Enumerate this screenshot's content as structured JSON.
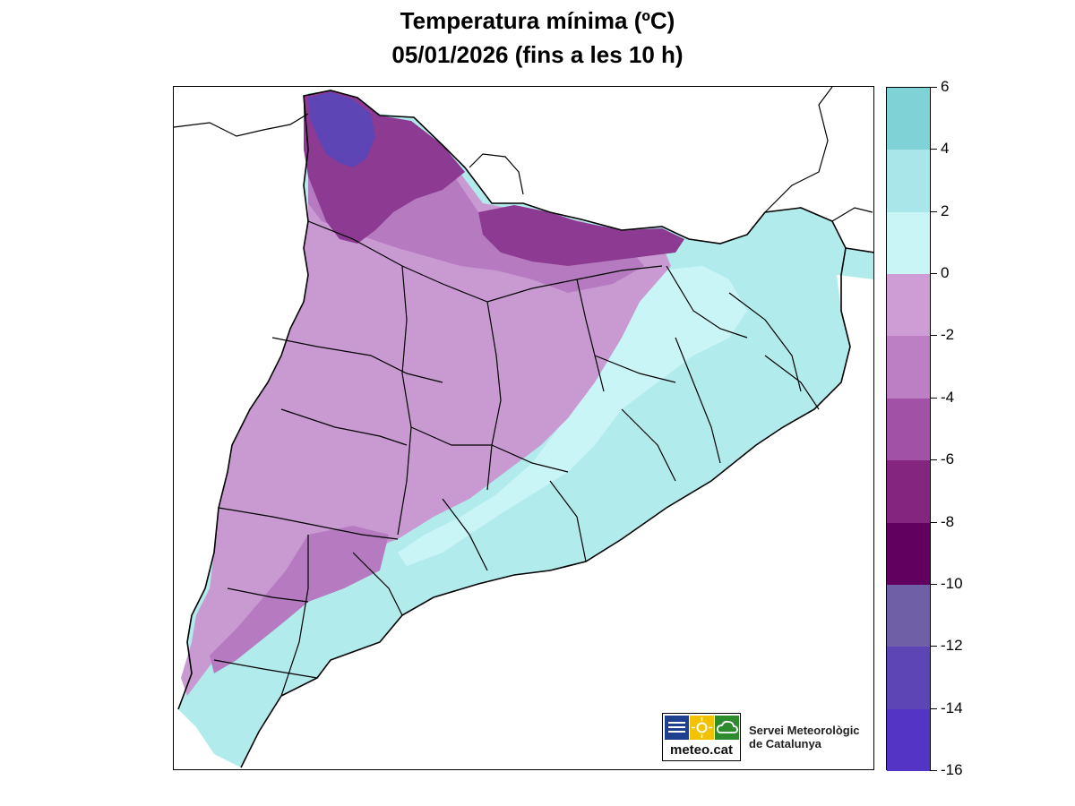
{
  "title": {
    "line1": "Temperatura mínima (ºC)",
    "line2": "05/01/2026 (fins a les 10 h)"
  },
  "legend": {
    "ticks": [
      "6",
      "4",
      "2",
      "0",
      "-2",
      "-4",
      "-6",
      "-8",
      "-10",
      "-12",
      "-14",
      "-16"
    ],
    "bands": [
      {
        "from": 4,
        "to": 6,
        "color": "#7fd3d6"
      },
      {
        "from": 2,
        "to": 4,
        "color": "#a9e6e9"
      },
      {
        "from": 0,
        "to": 2,
        "color": "#c9f5f7"
      },
      {
        "from": -2,
        "to": 0,
        "color": "#cf9dd6"
      },
      {
        "from": -4,
        "to": -2,
        "color": "#bc7fc4"
      },
      {
        "from": -6,
        "to": -4,
        "color": "#a152a6"
      },
      {
        "from": -8,
        "to": -6,
        "color": "#84257f"
      },
      {
        "from": -10,
        "to": -8,
        "color": "#62005f"
      },
      {
        "from": -12,
        "to": -10,
        "color": "#6f5fa6"
      },
      {
        "from": -14,
        "to": -12,
        "color": "#5d45b5"
      },
      {
        "from": -16,
        "to": -14,
        "color": "#5334c4"
      }
    ]
  },
  "map": {
    "region": "Catalunya",
    "colors": {
      "land_warm": "#b1ebec",
      "land_mild": "#c9f5f7",
      "land_cold": "#c99ad2",
      "land_colder": "#b57ac0",
      "land_very_cold": "#8d3a92",
      "land_extreme": "#5d45b5",
      "border": "#000000"
    }
  },
  "logo": {
    "brand": "meteo.cat",
    "org_line1": "Servei Meteorològic",
    "org_line2": "de Catalunya",
    "icons": [
      "waves-icon",
      "sun-icon",
      "cloud-icon"
    ]
  }
}
